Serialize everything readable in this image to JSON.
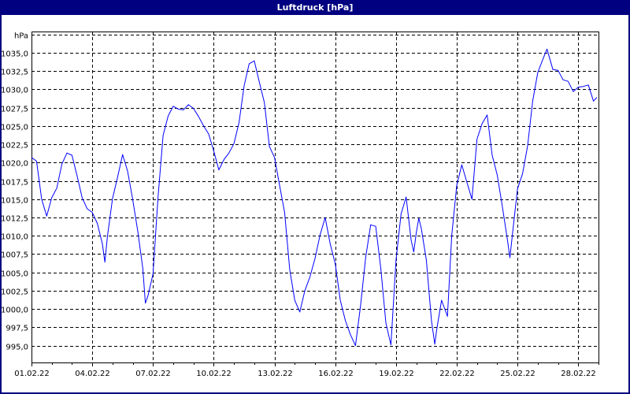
{
  "window": {
    "title": "Luftdruck [hPa]"
  },
  "chart_data": {
    "type": "line",
    "title": "Luftdruck [hPa]",
    "ylabel": "hPa",
    "ylim": [
      992.7,
      1037.9
    ],
    "xlim": [
      "01.02.22 00:00",
      "01.03.22 00:00"
    ],
    "grid": true,
    "y_ticks": [
      "995,0",
      "997,5",
      "1000,0",
      "1002,5",
      "1005,0",
      "1007,5",
      "1010,0",
      "1012,5",
      "1015,0",
      "1017,5",
      "1020,0",
      "1022,5",
      "1025,0",
      "1027,5",
      "1030,0",
      "1032,5",
      "1035,0"
    ],
    "y_tick_values": [
      995,
      997.5,
      1000,
      1002.5,
      1005,
      1007.5,
      1010,
      1012.5,
      1015,
      1017.5,
      1020,
      1022.5,
      1025,
      1027.5,
      1030,
      1032.5,
      1035
    ],
    "y_unit_gridline": 1037.5,
    "x_ticks": [
      "01.02.22",
      "04.02.22",
      "07.02.22",
      "10.02.22",
      "13.02.22",
      "16.02.22",
      "19.02.22",
      "22.02.22",
      "25.02.22",
      "28.02.22"
    ],
    "line_color": "#0000ff",
    "series": [
      {
        "points": [
          [
            "01.02.22 00:00",
            1020.7
          ],
          [
            "01.02.22 06:00",
            1020.2
          ],
          [
            "01.02.22 12:00",
            1015.0
          ],
          [
            "01.02.22 18:00",
            1012.7
          ],
          [
            "02.02.22 00:00",
            1015.2
          ],
          [
            "02.02.22 06:00",
            1016.5
          ],
          [
            "02.02.22 12:00",
            1019.8
          ],
          [
            "02.02.22 18:00",
            1021.3
          ],
          [
            "03.02.22 00:00",
            1021.0
          ],
          [
            "03.02.22 06:00",
            1018.2
          ],
          [
            "03.02.22 12:00",
            1015.2
          ],
          [
            "03.02.22 18:00",
            1013.7
          ],
          [
            "04.02.22 00:00",
            1013.2
          ],
          [
            "04.02.22 06:00",
            1011.7
          ],
          [
            "04.02.22 12:00",
            1008.9
          ],
          [
            "04.02.22 15:00",
            1006.4
          ],
          [
            "04.02.22 18:00",
            1009.9
          ],
          [
            "05.02.22 00:00",
            1015.1
          ],
          [
            "05.02.22 06:00",
            1018.0
          ],
          [
            "05.02.22 12:00",
            1021.1
          ],
          [
            "05.02.22 18:00",
            1018.8
          ],
          [
            "06.02.22 00:00",
            1014.9
          ],
          [
            "06.02.22 06:00",
            1010.6
          ],
          [
            "06.02.22 12:00",
            1005.5
          ],
          [
            "06.02.22 15:00",
            1000.8
          ],
          [
            "06.02.22 18:00",
            1001.8
          ],
          [
            "07.02.22 00:00",
            1004.8
          ],
          [
            "07.02.22 06:00",
            1015.3
          ],
          [
            "07.02.22 12:00",
            1023.7
          ],
          [
            "07.02.22 18:00",
            1026.4
          ],
          [
            "08.02.22 00:00",
            1027.7
          ],
          [
            "08.02.22 06:00",
            1027.3
          ],
          [
            "08.02.22 12:00",
            1027.2
          ],
          [
            "08.02.22 18:00",
            1027.9
          ],
          [
            "09.02.22 00:00",
            1027.4
          ],
          [
            "09.02.22 06:00",
            1026.3
          ],
          [
            "09.02.22 12:00",
            1025.0
          ],
          [
            "09.02.22 18:00",
            1023.9
          ],
          [
            "10.02.22 00:00",
            1021.6
          ],
          [
            "10.02.22 06:00",
            1019.0
          ],
          [
            "10.02.22 12:00",
            1020.4
          ],
          [
            "10.02.22 18:00",
            1021.3
          ],
          [
            "11.02.22 00:00",
            1022.6
          ],
          [
            "11.02.22 06:00",
            1025.5
          ],
          [
            "11.02.22 12:00",
            1030.5
          ],
          [
            "11.02.22 18:00",
            1033.5
          ],
          [
            "12.02.22 00:00",
            1033.9
          ],
          [
            "12.02.22 06:00",
            1031.0
          ],
          [
            "12.02.22 12:00",
            1028.2
          ],
          [
            "12.02.22 18:00",
            1022.2
          ],
          [
            "13.02.22 00:00",
            1020.7
          ],
          [
            "13.02.22 06:00",
            1016.9
          ],
          [
            "13.02.22 12:00",
            1013.2
          ],
          [
            "13.02.22 18:00",
            1005.4
          ],
          [
            "14.02.22 00:00",
            1001.2
          ],
          [
            "14.02.22 06:00",
            999.6
          ],
          [
            "14.02.22 12:00",
            1002.5
          ],
          [
            "14.02.22 18:00",
            1004.4
          ],
          [
            "15.02.22 00:00",
            1006.9
          ],
          [
            "15.02.22 06:00",
            1010.1
          ],
          [
            "15.02.22 12:00",
            1012.5
          ],
          [
            "15.02.22 18:00",
            1008.9
          ],
          [
            "16.02.22 00:00",
            1006.2
          ],
          [
            "16.02.22 06:00",
            1001.2
          ],
          [
            "16.02.22 12:00",
            998.4
          ],
          [
            "16.02.22 18:00",
            996.5
          ],
          [
            "17.02.22 00:00",
            995.0
          ],
          [
            "17.02.22 06:00",
            1000.5
          ],
          [
            "17.02.22 12:00",
            1007.0
          ],
          [
            "17.02.22 18:00",
            1011.5
          ],
          [
            "18.02.22 00:00",
            1011.3
          ],
          [
            "18.02.22 06:00",
            1005.5
          ],
          [
            "18.02.22 12:00",
            998.1
          ],
          [
            "18.02.22 18:00",
            995.1
          ],
          [
            "19.02.22 00:00",
            1006.7
          ],
          [
            "19.02.22 06:00",
            1013.0
          ],
          [
            "19.02.22 12:00",
            1015.3
          ],
          [
            "19.02.22 18:00",
            1009.4
          ],
          [
            "19.02.22 21:00",
            1007.8
          ],
          [
            "20.02.22 00:00",
            1010.4
          ],
          [
            "20.02.22 03:00",
            1012.4
          ],
          [
            "20.02.22 06:00",
            1011.0
          ],
          [
            "20.02.22 12:00",
            1006.7
          ],
          [
            "20.02.22 18:00",
            998.4
          ],
          [
            "20.02.22 22:00",
            995.2
          ],
          [
            "21.02.22 00:00",
            997.0
          ],
          [
            "21.02.22 06:00",
            1001.2
          ],
          [
            "21.02.22 13:00",
            999.0
          ],
          [
            "21.02.22 18:00",
            1010.0
          ],
          [
            "22.02.22 00:00",
            1016.9
          ],
          [
            "22.02.22 06:00",
            1019.7
          ],
          [
            "22.02.22 12:00",
            1017.3
          ],
          [
            "22.02.22 18:00",
            1015.0
          ],
          [
            "23.02.22 00:00",
            1023.2
          ],
          [
            "23.02.22 06:00",
            1025.3
          ],
          [
            "23.02.22 12:00",
            1026.5
          ],
          [
            "23.02.22 18:00",
            1021.0
          ],
          [
            "24.02.22 00:00",
            1018.3
          ],
          [
            "24.02.22 06:00",
            1014.0
          ],
          [
            "24.02.22 12:00",
            1009.5
          ],
          [
            "24.02.22 15:00",
            1007.0
          ],
          [
            "24.02.22 18:00",
            1010.2
          ],
          [
            "25.02.22 00:00",
            1016.4
          ],
          [
            "25.02.22 06:00",
            1018.5
          ],
          [
            "25.02.22 12:00",
            1022.3
          ],
          [
            "25.02.22 18:00",
            1028.4
          ],
          [
            "26.02.22 00:00",
            1032.3
          ],
          [
            "26.02.22 06:00",
            1034.1
          ],
          [
            "26.02.22 11:00",
            1035.5
          ],
          [
            "26.02.22 18:00",
            1032.7
          ],
          [
            "27.02.22 00:00",
            1032.6
          ],
          [
            "27.02.22 06:00",
            1031.3
          ],
          [
            "27.02.22 12:00",
            1031.1
          ],
          [
            "27.02.22 18:00",
            1029.7
          ],
          [
            "28.02.22 00:00",
            1030.3
          ],
          [
            "28.02.22 06:00",
            1030.4
          ],
          [
            "28.02.22 12:00",
            1030.6
          ],
          [
            "28.02.22 18:00",
            1028.4
          ],
          [
            "28.02.22 22:00",
            1028.9
          ]
        ]
      }
    ]
  }
}
